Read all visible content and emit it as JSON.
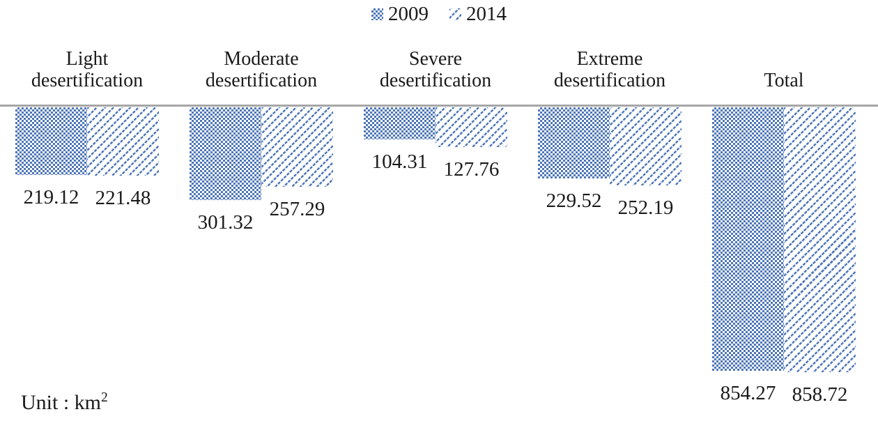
{
  "legend": {
    "items": [
      {
        "label": "2009",
        "pattern": "checker"
      },
      {
        "label": "2014",
        "pattern": "diagonal-stripe"
      }
    ]
  },
  "unit": {
    "text": "Unit : km",
    "superscript": "2"
  },
  "colors": {
    "bar_blue": "#4d76b8",
    "axis_gray": "#a6a6a6",
    "text": "#1a1a1a",
    "background": "#ffffff"
  },
  "chart_data": {
    "type": "bar",
    "orientation": "downward-hanging-from-baseline",
    "categories": [
      "Light desertification",
      "Moderate desertification",
      "Severe desertification",
      "Extreme desertification",
      "Total"
    ],
    "series": [
      {
        "name": "2009",
        "pattern": "checker",
        "values": [
          219.12,
          301.32,
          104.31,
          229.52,
          854.27
        ]
      },
      {
        "name": "2014",
        "pattern": "diagonal-stripe",
        "values": [
          221.48,
          257.29,
          127.76,
          252.19,
          858.72
        ]
      }
    ],
    "value_labels_shown": true,
    "legend_position": "top-center",
    "grid": false,
    "ylabel": "",
    "xlabel": "",
    "unit": "km²"
  }
}
